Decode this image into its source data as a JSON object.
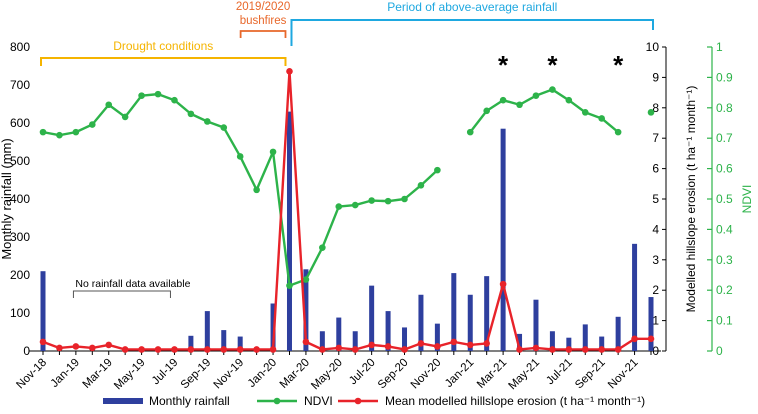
{
  "chart_data": {
    "type": "bar+line",
    "categories": [
      "Nov-18",
      "Dec-18",
      "Jan-19",
      "Feb-19",
      "Mar-19",
      "Apr-19",
      "May-19",
      "Jun-19",
      "Jul-19",
      "Aug-19",
      "Sep-19",
      "Oct-19",
      "Nov-19",
      "Dec-19",
      "Jan-20",
      "Feb-20",
      "Mar-20",
      "Apr-20",
      "May-20",
      "Jun-20",
      "Jul-20",
      "Aug-20",
      "Sep-20",
      "Oct-20",
      "Nov-20",
      "Dec-20",
      "Jan-21",
      "Feb-21",
      "Mar-21",
      "Apr-21",
      "May-21",
      "Jun-21",
      "Jul-21",
      "Aug-21",
      "Sep-21",
      "Oct-21",
      "Nov-21",
      "Dec-21"
    ],
    "x_tick_labels": [
      "Nov-18",
      "Jan-19",
      "Mar-19",
      "May-19",
      "Jul-19",
      "Sep-19",
      "Nov-19",
      "Jan-20",
      "Mar-20",
      "May-20",
      "Jul-20",
      "Sep-20",
      "Nov-20",
      "Jan-21",
      "Mar-21",
      "May-21",
      "Jul-21",
      "Sep-21",
      "Nov-21"
    ],
    "y_left": {
      "label": "Monthly rainfall (mm)",
      "ylim": [
        0,
        800
      ],
      "ticks": [
        "0",
        "100",
        "200",
        "300",
        "400",
        "500",
        "600",
        "700",
        "800"
      ]
    },
    "y_right_erosion": {
      "label": "Modelled hillslope erosion (t ha⁻¹ month⁻¹)",
      "ylim": [
        0,
        10
      ],
      "ticks": [
        "0",
        "1",
        "2",
        "3",
        "4",
        "5",
        "6",
        "7",
        "8",
        "9",
        "10"
      ]
    },
    "y_right_ndvi": {
      "label": "NDVI",
      "ylim": [
        0,
        1
      ],
      "ticks": [
        "0",
        "0.1",
        "0.2",
        "0.3",
        "0.4",
        "0.5",
        "0.6",
        "0.7",
        "0.8",
        "0.9",
        "1"
      ]
    },
    "series": [
      {
        "name": "Monthly rainfall",
        "axis": "left",
        "kind": "bar",
        "color": "#2e3f9e",
        "values": [
          210,
          null,
          null,
          null,
          null,
          null,
          null,
          null,
          5,
          40,
          105,
          55,
          38,
          0,
          125,
          630,
          215,
          52,
          88,
          52,
          172,
          105,
          62,
          148,
          72,
          205,
          148,
          197,
          585,
          45,
          135,
          52,
          35,
          70,
          38,
          90,
          282,
          142
        ]
      },
      {
        "name": "NDVI",
        "axis": "right_ndvi",
        "kind": "line",
        "color": "#2db34a",
        "values": [
          0.72,
          0.71,
          0.72,
          0.745,
          0.81,
          0.77,
          0.84,
          0.845,
          0.825,
          0.78,
          0.755,
          0.735,
          0.64,
          0.53,
          0.655,
          0.215,
          0.235,
          0.34,
          0.475,
          0.48,
          0.495,
          0.493,
          0.5,
          0.545,
          0.595,
          null,
          0.72,
          0.79,
          0.825,
          0.81,
          0.84,
          0.86,
          0.825,
          0.785,
          0.765,
          0.72,
          null,
          0.785
        ]
      },
      {
        "name": "Mean modelled hillslope erosion (t ha⁻¹ month⁻¹)",
        "axis": "right_erosion",
        "kind": "line",
        "color": "#e8232a",
        "values": [
          0.3,
          0.1,
          0.15,
          0.1,
          0.2,
          0.05,
          0.05,
          0.05,
          0.05,
          0.05,
          0.05,
          0.05,
          0.05,
          0.05,
          0.05,
          9.2,
          0.3,
          0.05,
          0.1,
          0.05,
          0.2,
          0.15,
          0.05,
          0.25,
          0.15,
          0.3,
          0.2,
          0.25,
          2.2,
          0.05,
          0.1,
          0.05,
          0.05,
          0.05,
          0.05,
          0.05,
          0.4,
          0.4
        ]
      }
    ],
    "annotations": {
      "drought": {
        "text": "Drought conditions",
        "from": "Nov-18",
        "to": "Feb-20",
        "color": "#f5b400"
      },
      "bushfires": {
        "text": "2019/2020\nbushfires",
        "text_line1": "2019/2020",
        "text_line2": "bushfires",
        "from": "Dec-19",
        "to": "Feb-20",
        "color": "#e8672a"
      },
      "rainfall": {
        "text": "Period of above-average rainfall",
        "from": "Feb-20",
        "to": "Dec-21",
        "color": "#1ea8e0"
      },
      "no_data": {
        "text": "No rainfall data available",
        "from": "Dec-18",
        "to": "Jul-19"
      },
      "asterisks": {
        "symbol": "*",
        "at": [
          "Mar-21",
          "Jun-21",
          "Oct-21"
        ]
      }
    },
    "legend": {
      "placement": "bottom"
    }
  }
}
